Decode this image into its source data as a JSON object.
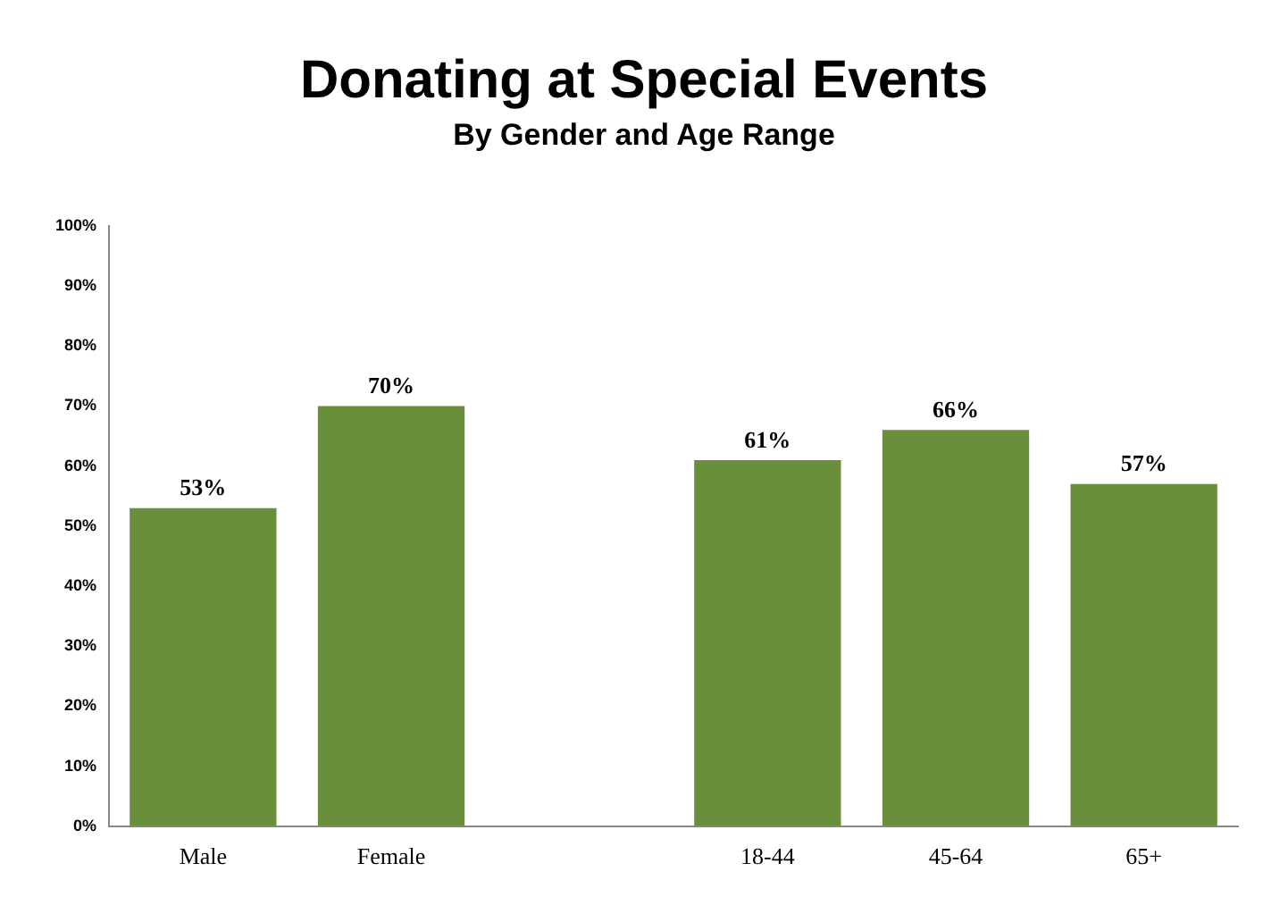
{
  "chart_data": {
    "type": "bar",
    "title": "Donating at Special Events",
    "subtitle": "By Gender and Age Range",
    "categories": [
      "Male",
      "Female",
      null,
      "18-44",
      "45-64",
      "65+"
    ],
    "values": [
      53,
      70,
      null,
      61,
      66,
      57
    ],
    "value_labels": [
      "53%",
      "70%",
      null,
      "61%",
      "66%",
      "57%"
    ],
    "color": "#6a8f3a",
    "ylim": [
      0,
      100
    ],
    "yticks": [
      {
        "value": 0,
        "label": "0%"
      },
      {
        "value": 10,
        "label": "10%"
      },
      {
        "value": 20,
        "label": "20%"
      },
      {
        "value": 30,
        "label": "30%"
      },
      {
        "value": 40,
        "label": "40%"
      },
      {
        "value": 50,
        "label": "50%"
      },
      {
        "value": 60,
        "label": "60%"
      },
      {
        "value": 70,
        "label": "70%"
      },
      {
        "value": 80,
        "label": "80%"
      },
      {
        "value": 90,
        "label": "90%"
      },
      {
        "value": 100,
        "label": "100%"
      }
    ],
    "grid": false,
    "legend": false
  }
}
